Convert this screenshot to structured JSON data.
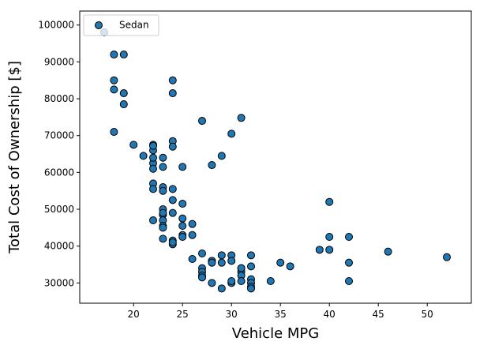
{
  "chart_data": {
    "type": "scatter",
    "title": "",
    "xlabel": "Vehicle MPG",
    "ylabel": "Total Cost of Ownership [$]",
    "xlim": [
      14.5,
      54.5
    ],
    "ylim": [
      24500,
      103800
    ],
    "xticks": [
      20,
      25,
      30,
      35,
      40,
      45,
      50
    ],
    "yticks": [
      30000,
      40000,
      50000,
      60000,
      70000,
      80000,
      90000,
      100000
    ],
    "xtick_labels": [
      "20",
      "25",
      "30",
      "35",
      "40",
      "45",
      "50"
    ],
    "ytick_labels": [
      "30000",
      "40000",
      "50000",
      "60000",
      "70000",
      "80000",
      "90000",
      "100000"
    ],
    "grid": false,
    "legend_position": "upper left",
    "marker_color": "#1f77b4",
    "marker_edge": "#000000",
    "series": [
      {
        "name": "Sedan",
        "x": [
          17,
          18,
          19,
          18,
          18,
          19,
          19,
          18,
          20,
          21,
          22,
          22,
          22,
          22,
          22,
          22,
          22,
          22,
          22,
          23,
          23,
          23,
          23,
          23,
          23,
          23,
          23,
          23,
          23,
          23,
          24,
          24,
          24,
          24,
          24,
          24,
          24,
          24,
          24,
          24,
          25,
          25,
          25,
          25,
          25,
          25,
          26,
          26,
          26,
          27,
          27,
          27,
          27,
          27,
          27,
          28,
          28,
          28,
          28,
          29,
          29,
          29,
          29,
          30,
          30,
          30,
          30,
          30,
          31,
          31,
          31,
          31,
          31,
          31,
          32,
          32,
          32,
          32,
          32,
          32,
          34,
          35,
          36,
          39,
          40,
          40,
          40,
          42,
          42,
          42,
          46,
          52
        ],
        "y": [
          98000,
          92000,
          92000,
          85000,
          82500,
          81500,
          78500,
          71000,
          67500,
          64500,
          67500,
          66000,
          62500,
          61000,
          57000,
          55500,
          47000,
          67200,
          64000,
          64000,
          61500,
          56000,
          55000,
          50000,
          48500,
          47000,
          45500,
          42000,
          45000,
          49000,
          85000,
          81500,
          68500,
          67000,
          55500,
          52500,
          49000,
          41500,
          40500,
          41000,
          61500,
          51500,
          47500,
          45500,
          43000,
          42500,
          46000,
          43000,
          36500,
          74000,
          38000,
          34000,
          33000,
          32000,
          31500,
          62000,
          36000,
          35500,
          30000,
          64500,
          37500,
          35500,
          28500,
          70500,
          37500,
          36000,
          30000,
          30500,
          74800,
          34000,
          33000,
          32000,
          30500,
          34000,
          37500,
          34500,
          31000,
          30000,
          29000,
          28500,
          30500,
          35500,
          34500,
          39000,
          52000,
          42500,
          39000,
          42500,
          35500,
          30500,
          38500,
          37000
        ]
      }
    ]
  }
}
